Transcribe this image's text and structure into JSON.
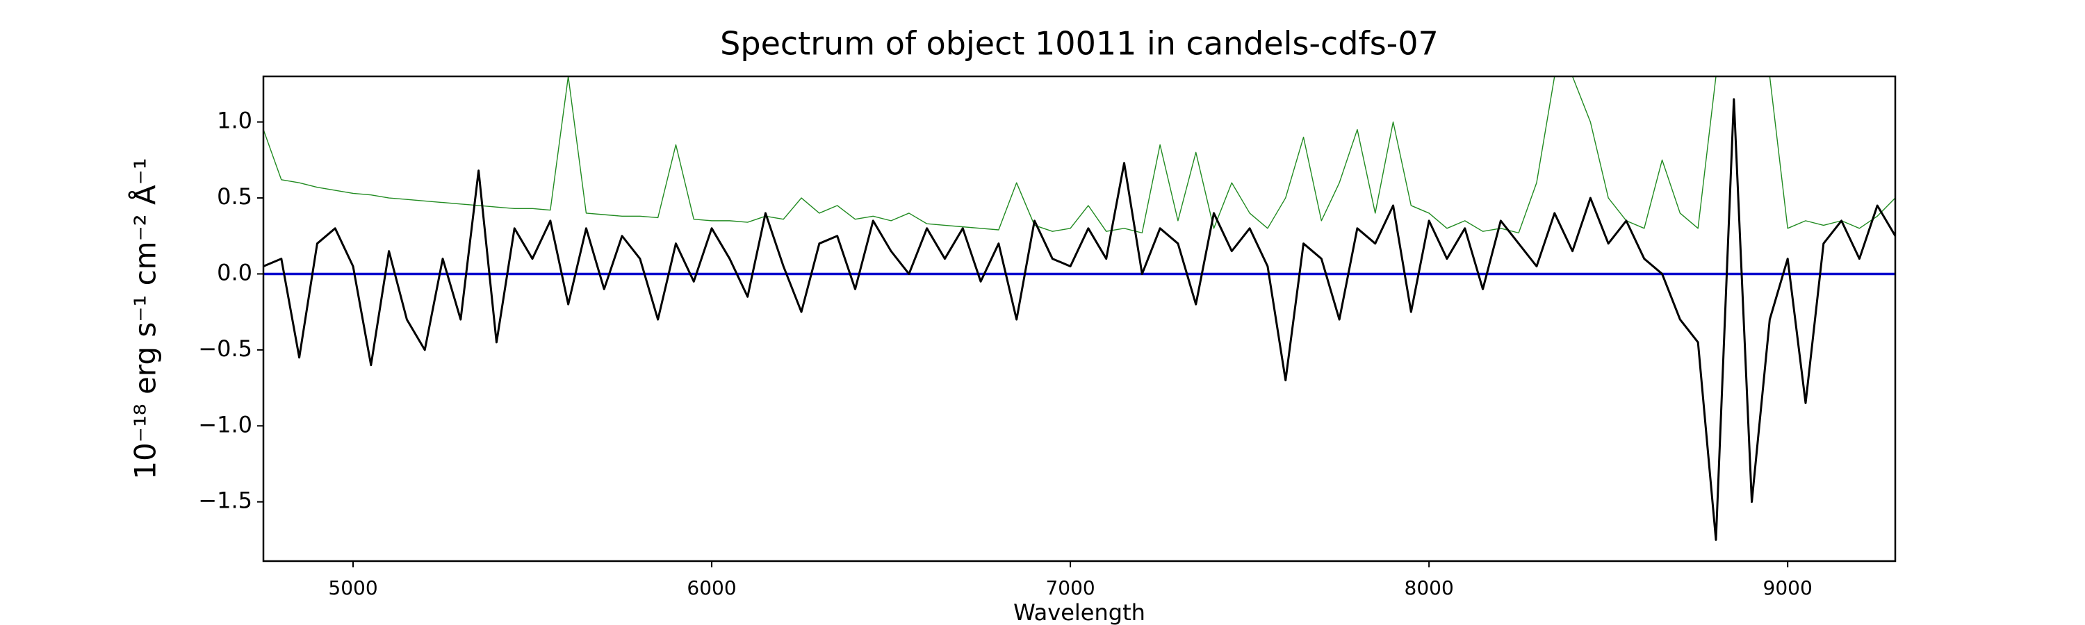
{
  "chart_data": {
    "type": "line",
    "title": "Spectrum of object 10011 in candels-cdfs-07",
    "xlabel": "Wavelength",
    "ylabel": "10⁻¹⁸ erg s⁻¹ cm⁻² Å⁻¹",
    "x": [
      4750,
      4800,
      4850,
      4900,
      4950,
      5000,
      5050,
      5100,
      5150,
      5200,
      5250,
      5300,
      5350,
      5400,
      5450,
      5500,
      5550,
      5600,
      5650,
      5700,
      5750,
      5800,
      5850,
      5900,
      5950,
      6000,
      6050,
      6100,
      6150,
      6200,
      6250,
      6300,
      6350,
      6400,
      6450,
      6500,
      6550,
      6600,
      6650,
      6700,
      6750,
      6800,
      6850,
      6900,
      6950,
      7000,
      7050,
      7100,
      7150,
      7200,
      7250,
      7300,
      7350,
      7400,
      7450,
      7500,
      7550,
      7600,
      7650,
      7700,
      7750,
      7800,
      7850,
      7900,
      7950,
      8000,
      8050,
      8100,
      8150,
      8200,
      8250,
      8300,
      8350,
      8400,
      8450,
      8500,
      8550,
      8600,
      8650,
      8700,
      8750,
      8800,
      8850,
      8900,
      8950,
      9000,
      9050,
      9100,
      9150,
      9200,
      9250,
      9300
    ],
    "series": [
      {
        "color": "#228b22",
        "width": 1.4,
        "values": [
          0.95,
          0.62,
          0.6,
          0.57,
          0.55,
          0.53,
          0.52,
          0.5,
          0.49,
          0.48,
          0.47,
          0.46,
          0.45,
          0.44,
          0.43,
          0.43,
          0.42,
          1.3,
          0.4,
          0.39,
          0.38,
          0.38,
          0.37,
          0.85,
          0.36,
          0.35,
          0.35,
          0.34,
          0.38,
          0.36,
          0.5,
          0.4,
          0.45,
          0.36,
          0.38,
          0.35,
          0.4,
          0.33,
          0.32,
          0.31,
          0.3,
          0.29,
          0.6,
          0.32,
          0.28,
          0.3,
          0.45,
          0.28,
          0.3,
          0.27,
          0.85,
          0.35,
          0.8,
          0.3,
          0.6,
          0.4,
          0.3,
          0.5,
          0.9,
          0.35,
          0.6,
          0.95,
          0.4,
          1.0,
          0.45,
          0.4,
          0.3,
          0.35,
          0.28,
          0.3,
          0.27,
          0.6,
          1.3,
          1.3,
          1.0,
          0.5,
          0.35,
          0.3,
          0.75,
          0.4,
          0.3,
          1.3,
          1.3,
          1.3,
          1.3,
          0.3,
          0.35,
          0.32,
          0.35,
          0.3,
          0.38,
          0.5
        ]
      },
      {
        "color": "#0000cd",
        "width": 3.5,
        "values": [
          0,
          0,
          0,
          0,
          0,
          0,
          0,
          0,
          0,
          0,
          0,
          0,
          0,
          0,
          0,
          0,
          0,
          0,
          0,
          0,
          0,
          0,
          0,
          0,
          0,
          0,
          0,
          0,
          0,
          0,
          0,
          0,
          0,
          0,
          0,
          0,
          0,
          0,
          0,
          0,
          0,
          0,
          0,
          0,
          0,
          0,
          0,
          0,
          0,
          0,
          0,
          0,
          0,
          0,
          0,
          0,
          0,
          0,
          0,
          0,
          0,
          0,
          0,
          0,
          0,
          0,
          0,
          0,
          0,
          0,
          0,
          0,
          0,
          0,
          0,
          0,
          0,
          0,
          0,
          0,
          0,
          0,
          0,
          0,
          0,
          0,
          0,
          0,
          0,
          0,
          0,
          0
        ]
      },
      {
        "color": "#000000",
        "width": 3,
        "values": [
          0.05,
          0.1,
          -0.55,
          0.2,
          0.3,
          0.05,
          -0.6,
          0.15,
          -0.3,
          -0.5,
          0.1,
          -0.3,
          0.68,
          -0.45,
          0.3,
          0.1,
          0.35,
          -0.2,
          0.3,
          -0.1,
          0.25,
          0.1,
          -0.3,
          0.2,
          -0.05,
          0.3,
          0.1,
          -0.15,
          0.4,
          0.05,
          -0.25,
          0.2,
          0.25,
          -0.1,
          0.35,
          0.15,
          0.0,
          0.3,
          0.1,
          0.3,
          -0.05,
          0.2,
          -0.3,
          0.35,
          0.1,
          0.05,
          0.3,
          0.1,
          0.73,
          0.0,
          0.3,
          0.2,
          -0.2,
          0.4,
          0.15,
          0.3,
          0.05,
          -0.7,
          0.2,
          0.1,
          -0.3,
          0.3,
          0.2,
          0.45,
          -0.25,
          0.35,
          0.1,
          0.3,
          -0.1,
          0.35,
          0.2,
          0.05,
          0.4,
          0.15,
          0.5,
          0.2,
          0.35,
          0.1,
          0.0,
          -0.3,
          -0.45,
          -1.75,
          1.15,
          -1.5,
          -0.3,
          0.1,
          -0.85,
          0.2,
          0.35,
          0.1,
          0.45,
          0.25
        ]
      }
    ],
    "xlim": [
      4750,
      9300
    ],
    "ylim": [
      -1.89,
      1.3
    ],
    "xticks": [
      5000,
      6000,
      7000,
      8000,
      9000
    ],
    "yticks": [
      {
        "value": -1.5,
        "label": "−1.5"
      },
      {
        "value": -1.0,
        "label": "−1.0"
      },
      {
        "value": -0.5,
        "label": "−0.5"
      },
      {
        "value": 0,
        "label": "0.0"
      },
      {
        "value": 0.5,
        "label": "0.5"
      },
      {
        "value": 1.0,
        "label": "1.0"
      }
    ],
    "grid": false
  }
}
